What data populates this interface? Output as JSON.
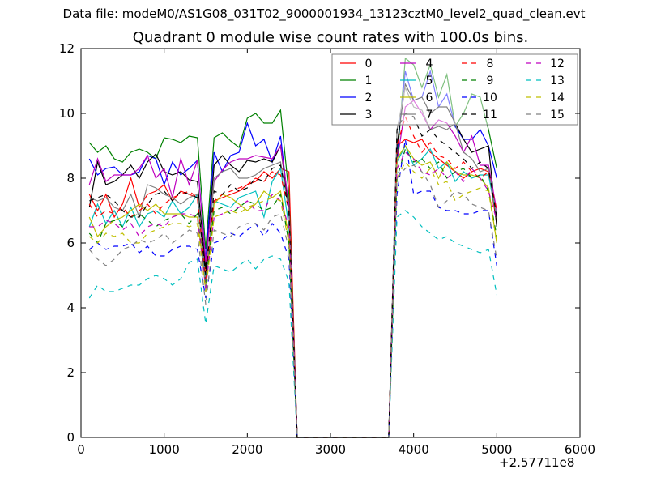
{
  "suptitle": "Data file: modeM0/AS1G08_031T02_9000001934_13123cztM0_level2_quad_clean.evt",
  "chart_data": {
    "type": "line",
    "title": "Quadrant 0 module wise count rates with 100.0s bins.",
    "xlabel": "",
    "ylabel": "",
    "x_offset_label": "+2.57711e8",
    "xlim": [
      0,
      6000
    ],
    "ylim": [
      0,
      12
    ],
    "xticks": [
      0,
      1000,
      2000,
      3000,
      4000,
      5000,
      6000
    ],
    "yticks": [
      0,
      2,
      4,
      6,
      8,
      10,
      12
    ],
    "grid": false,
    "legend": {
      "placement": "top-right",
      "columns": 4
    },
    "x": [
      100,
      200,
      300,
      400,
      500,
      600,
      700,
      800,
      900,
      1000,
      1100,
      1200,
      1300,
      1400,
      1500,
      1600,
      1700,
      1800,
      1900,
      2000,
      2100,
      2200,
      2300,
      2400,
      2500,
      2600,
      2700,
      2800,
      2900,
      3000,
      3100,
      3200,
      3300,
      3400,
      3500,
      3600,
      3700,
      3800,
      3900,
      4000,
      4100,
      4200,
      4300,
      4400,
      4500,
      4600,
      4700,
      4800,
      4900,
      5000
    ],
    "series": [
      {
        "name": "0",
        "color": "#ff0000",
        "style": "solid",
        "values": [
          7.5,
          7.0,
          7.5,
          6.8,
          7.2,
          8.0,
          7.1,
          7.5,
          7.6,
          7.8,
          7.3,
          7.6,
          7.5,
          7.4,
          5.0,
          7.3,
          7.4,
          7.5,
          7.6,
          7.8,
          7.9,
          8.2,
          8.0,
          8.3,
          8.2,
          0,
          0,
          0,
          0,
          0,
          0,
          0,
          0,
          0,
          0,
          0,
          0,
          9.0,
          9.2,
          9.1,
          9.2,
          8.8,
          8.6,
          8.4,
          8.2,
          8.0,
          8.2,
          8.3,
          8.2,
          6.6
        ]
      },
      {
        "name": "1",
        "color": "#008000",
        "style": "solid",
        "values": [
          9.1,
          8.8,
          9.0,
          8.6,
          8.5,
          8.8,
          8.9,
          8.8,
          8.6,
          9.25,
          9.2,
          9.1,
          9.3,
          9.25,
          5.8,
          9.25,
          9.4,
          9.15,
          8.95,
          9.85,
          10.0,
          9.7,
          9.7,
          10.1,
          7.5,
          0,
          0,
          0,
          0,
          0,
          0,
          0,
          0,
          0,
          0,
          0,
          0,
          8.5,
          11.7,
          11.5,
          10.8,
          11.5,
          10.5,
          11.2,
          9.6,
          10.0,
          10.6,
          10.5,
          9.5,
          8.3
        ]
      },
      {
        "name": "2",
        "color": "#0000ff",
        "style": "solid",
        "values": [
          8.6,
          8.1,
          8.3,
          8.35,
          8.1,
          8.1,
          8.2,
          8.7,
          8.6,
          7.8,
          8.5,
          8.1,
          8.3,
          8.55,
          5.5,
          8.8,
          8.2,
          8.7,
          8.8,
          9.7,
          9.0,
          9.2,
          8.5,
          9.3,
          7.0,
          0,
          0,
          0,
          0,
          0,
          0,
          0,
          0,
          0,
          0,
          0,
          0,
          8.8,
          11.3,
          10.4,
          10.5,
          11.3,
          10.2,
          10.6,
          9.6,
          9.2,
          9.2,
          9.5,
          9.0,
          8.0
        ]
      },
      {
        "name": "3",
        "color": "#000000",
        "style": "solid",
        "values": [
          7.1,
          8.5,
          7.8,
          7.9,
          8.1,
          8.4,
          8.0,
          8.5,
          8.75,
          8.2,
          8.1,
          8.2,
          7.95,
          7.9,
          5.2,
          8.4,
          8.7,
          8.4,
          8.2,
          8.55,
          8.5,
          8.6,
          8.5,
          9.0,
          7.0,
          0,
          0,
          0,
          0,
          0,
          0,
          0,
          0,
          0,
          0,
          0,
          0,
          9.0,
          10.9,
          10.4,
          10.5,
          10.0,
          10.2,
          10.2,
          9.7,
          9.2,
          8.8,
          8.9,
          9.0,
          6.5
        ]
      },
      {
        "name": "4",
        "color": "#bf00bf",
        "style": "solid",
        "values": [
          7.8,
          8.6,
          7.9,
          8.1,
          8.1,
          8.1,
          8.3,
          8.7,
          8.0,
          8.3,
          7.4,
          8.6,
          7.8,
          8.55,
          5.4,
          7.9,
          8.25,
          8.5,
          8.6,
          8.6,
          8.7,
          8.65,
          8.6,
          9.0,
          7.2,
          0,
          0,
          0,
          0,
          0,
          0,
          0,
          0,
          0,
          0,
          0,
          0,
          8.5,
          10.2,
          10.4,
          10.0,
          9.5,
          9.8,
          9.7,
          9.3,
          8.8,
          9.3,
          8.4,
          8.4,
          7.0
        ]
      },
      {
        "name": "5",
        "color": "#00bfbf",
        "style": "solid",
        "values": [
          6.5,
          7.2,
          6.6,
          7.0,
          6.5,
          7.1,
          6.5,
          6.9,
          7.0,
          6.8,
          7.3,
          6.9,
          7.1,
          7.5,
          4.8,
          7.3,
          7.2,
          7.1,
          7.4,
          7.5,
          7.6,
          6.8,
          7.9,
          8.3,
          6.5,
          0,
          0,
          0,
          0,
          0,
          0,
          0,
          0,
          0,
          0,
          0,
          0,
          8.5,
          9.0,
          8.4,
          8.6,
          8.9,
          8.3,
          8.5,
          7.9,
          8.2,
          8.0,
          8.1,
          8.1,
          6.8
        ]
      },
      {
        "name": "6",
        "color": "#bfbf00",
        "style": "solid",
        "values": [
          6.8,
          6.2,
          6.5,
          6.7,
          6.8,
          7.0,
          7.2,
          7.0,
          7.2,
          6.9,
          6.9,
          6.9,
          6.8,
          6.8,
          4.6,
          7.2,
          7.5,
          7.4,
          7.2,
          7.0,
          7.2,
          7.6,
          7.4,
          7.6,
          6.2,
          0,
          0,
          0,
          0,
          0,
          0,
          0,
          0,
          0,
          0,
          0,
          0,
          8.6,
          9.0,
          8.6,
          8.4,
          8.5,
          8.0,
          8.5,
          8.2,
          8.1,
          8.1,
          8.0,
          7.7,
          6.0
        ]
      },
      {
        "name": "7",
        "color": "#808080",
        "style": "solid",
        "values": [
          7.4,
          7.3,
          7.4,
          7.1,
          7.0,
          7.5,
          6.8,
          7.8,
          7.7,
          7.5,
          7.4,
          7.2,
          7.4,
          7.5,
          4.5,
          8.0,
          8.2,
          8.3,
          8.0,
          8.0,
          8.1,
          8.3,
          8.4,
          8.5,
          7.0,
          0,
          0,
          0,
          0,
          0,
          0,
          0,
          0,
          0,
          0,
          0,
          0,
          9.5,
          10.8,
          10.2,
          10.1,
          9.5,
          9.6,
          9.5,
          9.7,
          8.8,
          8.6,
          8.2,
          8.3,
          6.8
        ]
      },
      {
        "name": "8",
        "color": "#ff0000",
        "style": "dashed",
        "values": [
          7.2,
          6.8,
          7.0,
          6.9,
          7.1,
          6.8,
          7.0,
          7.2,
          6.9,
          7.2,
          7.4,
          7.5,
          7.6,
          7.4,
          4.9,
          7.3,
          7.5,
          7.6,
          7.7,
          7.8,
          8.0,
          7.9,
          8.2,
          8.1,
          7.0,
          0,
          0,
          0,
          0,
          0,
          0,
          0,
          0,
          0,
          0,
          0,
          0,
          9.0,
          9.9,
          9.3,
          8.8,
          9.1,
          8.7,
          8.6,
          8.3,
          8.5,
          8.2,
          8.0,
          8.2,
          7.0
        ]
      },
      {
        "name": "9",
        "color": "#008000",
        "style": "dashed",
        "values": [
          6.3,
          6.0,
          6.6,
          6.7,
          6.5,
          6.8,
          6.9,
          6.7,
          6.5,
          6.7,
          6.8,
          6.9,
          6.6,
          6.9,
          4.7,
          7.0,
          7.1,
          6.9,
          7.1,
          7.3,
          7.2,
          7.0,
          7.1,
          7.5,
          6.0,
          0,
          0,
          0,
          0,
          0,
          0,
          0,
          0,
          0,
          0,
          0,
          0,
          8.0,
          8.9,
          8.5,
          8.6,
          8.3,
          8.5,
          8.0,
          8.2,
          8.3,
          8.0,
          8.1,
          7.6,
          6.2
        ]
      },
      {
        "name": "10",
        "color": "#0000ff",
        "style": "dashed",
        "values": [
          5.8,
          6.0,
          5.8,
          5.9,
          5.9,
          6.0,
          5.7,
          5.9,
          5.6,
          5.6,
          5.8,
          5.9,
          5.9,
          5.8,
          4.3,
          6.0,
          6.1,
          6.3,
          6.2,
          6.4,
          6.6,
          6.2,
          6.6,
          6.3,
          5.5,
          0,
          0,
          0,
          0,
          0,
          0,
          0,
          0,
          0,
          0,
          0,
          0,
          7.5,
          9.2,
          7.5,
          7.6,
          7.6,
          7.1,
          7.0,
          7.0,
          6.9,
          6.9,
          7.0,
          7.0,
          5.3
        ]
      },
      {
        "name": "11",
        "color": "#000000",
        "style": "dashed",
        "values": [
          7.3,
          7.4,
          7.5,
          7.3,
          7.0,
          6.8,
          6.8,
          7.2,
          7.5,
          7.6,
          7.3,
          7.6,
          7.5,
          7.4,
          5.0,
          7.6,
          7.5,
          7.8,
          7.6,
          7.7,
          8.0,
          7.9,
          8.3,
          8.4,
          7.0,
          0,
          0,
          0,
          0,
          0,
          0,
          0,
          0,
          0,
          0,
          0,
          0,
          9.5,
          10.0,
          9.9,
          9.3,
          9.5,
          9.2,
          9.0,
          8.8,
          8.6,
          8.3,
          8.5,
          8.3,
          6.8
        ]
      },
      {
        "name": "12",
        "color": "#bf00bf",
        "style": "dashed",
        "values": [
          6.5,
          6.5,
          6.7,
          6.6,
          6.4,
          6.6,
          6.2,
          6.5,
          6.6,
          6.5,
          6.8,
          6.9,
          6.9,
          6.8,
          4.6,
          6.8,
          6.9,
          7.0,
          7.1,
          7.3,
          7.0,
          7.0,
          7.5,
          7.3,
          6.5,
          0,
          0,
          0,
          0,
          0,
          0,
          0,
          0,
          0,
          0,
          0,
          0,
          8.3,
          8.8,
          8.6,
          8.2,
          8.1,
          8.3,
          8.0,
          8.2,
          7.9,
          8.3,
          8.0,
          7.6,
          6.7
        ]
      },
      {
        "name": "13",
        "color": "#00bfbf",
        "style": "dashed",
        "values": [
          4.3,
          4.7,
          4.5,
          4.5,
          4.6,
          4.7,
          4.7,
          4.9,
          5.0,
          4.9,
          4.7,
          4.9,
          5.4,
          5.5,
          3.5,
          5.3,
          5.2,
          5.1,
          5.3,
          5.5,
          5.2,
          5.5,
          5.6,
          5.5,
          4.8,
          0,
          0,
          0,
          0,
          0,
          0,
          0,
          0,
          0,
          0,
          0,
          0,
          6.8,
          7.0,
          6.8,
          6.5,
          6.3,
          6.1,
          6.2,
          6.0,
          5.9,
          5.8,
          5.7,
          5.8,
          4.4
        ]
      },
      {
        "name": "14",
        "color": "#bfbf00",
        "style": "dashed",
        "values": [
          6.2,
          6.0,
          6.3,
          6.2,
          6.3,
          6.0,
          6.0,
          6.3,
          6.4,
          6.5,
          6.6,
          6.6,
          6.5,
          6.6,
          4.5,
          6.8,
          6.9,
          7.0,
          6.9,
          7.1,
          7.2,
          7.3,
          7.4,
          7.3,
          6.0,
          0,
          0,
          0,
          0,
          0,
          0,
          0,
          0,
          0,
          0,
          0,
          0,
          8.0,
          8.5,
          8.2,
          8.0,
          8.3,
          7.8,
          7.9,
          7.3,
          7.5,
          7.6,
          7.7,
          7.6,
          6.0
        ]
      },
      {
        "name": "15",
        "color": "#808080",
        "style": "dashed",
        "values": [
          5.8,
          5.5,
          5.3,
          5.5,
          5.8,
          5.9,
          6.1,
          6.0,
          6.1,
          6.3,
          6.0,
          6.2,
          6.4,
          6.3,
          4.1,
          6.4,
          6.3,
          6.2,
          6.5,
          6.6,
          6.6,
          6.4,
          6.8,
          6.9,
          5.8,
          0,
          0,
          0,
          0,
          0,
          0,
          0,
          0,
          0,
          0,
          0,
          0,
          8.0,
          8.3,
          8.4,
          8.2,
          7.8,
          7.1,
          7.3,
          7.6,
          7.5,
          7.2,
          7.1,
          7.0,
          5.5
        ]
      }
    ]
  }
}
